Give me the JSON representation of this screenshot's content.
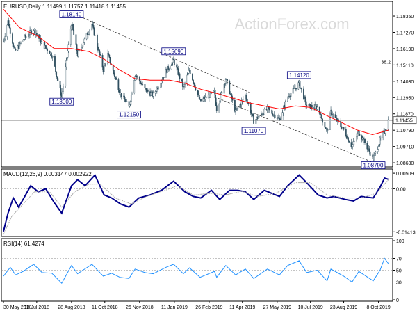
{
  "watermark": "ActionForex.com",
  "chart_data": [
    {
      "type": "candlestick",
      "panel": "price",
      "header": {
        "symbol": "EURUSD,Daily",
        "open": "1.11499",
        "high": "1.11757",
        "low": "1.11418",
        "close": "1.11455"
      },
      "ylim": [
        1.0845,
        1.1895
      ],
      "yticks": [
        "1.18350",
        "1.17270",
        "1.16190",
        "1.15110",
        "1.14030",
        "1.12950",
        "1.11870",
        "1.10790",
        "1.09710",
        "1.08630"
      ],
      "current_price": "1.11455",
      "fib_level": {
        "label": "38.2",
        "value": 1.1511
      },
      "horizontal_lines": [
        1.1511,
        1.1145
      ],
      "downtrend_channel": [
        {
          "from": [
            "2018-08-27",
            1.186
          ],
          "to": [
            "2019-04-20",
            1.133
          ]
        },
        {
          "from": [
            "2019-03-10",
            1.129
          ],
          "to": [
            "2019-10-01",
            1.0865
          ]
        }
      ],
      "annotations": [
        {
          "label": "1.18140",
          "date": "2018-08-28",
          "value": 1.1814
        },
        {
          "label": "1.13000",
          "date": "2018-08-15",
          "value": 1.13
        },
        {
          "label": "1.15690",
          "date": "2019-01-10",
          "value": 1.1569
        },
        {
          "label": "1.12150",
          "date": "2018-11-12",
          "value": 1.1215
        },
        {
          "label": "1.14120",
          "date": "2019-06-25",
          "value": 1.1412
        },
        {
          "label": "1.11070",
          "date": "2019-04-26",
          "value": 1.1107
        },
        {
          "label": "1.08790",
          "date": "2019-10-01",
          "value": 1.0879
        }
      ],
      "moving_average_keys": [
        [
          "2018-05-30",
          1.188
        ],
        [
          "2018-06-20",
          1.176
        ],
        [
          "2018-07-15",
          1.17
        ],
        [
          "2018-08-05",
          1.162
        ],
        [
          "2018-08-28",
          1.162
        ],
        [
          "2018-09-20",
          1.16
        ],
        [
          "2018-10-10",
          1.155
        ],
        [
          "2018-10-30",
          1.148
        ],
        [
          "2018-11-20",
          1.142
        ],
        [
          "2018-12-10",
          1.141
        ],
        [
          "2019-01-05",
          1.141
        ],
        [
          "2019-01-25",
          1.139
        ],
        [
          "2019-02-15",
          1.135
        ],
        [
          "2019-03-10",
          1.132
        ],
        [
          "2019-03-30",
          1.129
        ],
        [
          "2019-04-20",
          1.126
        ],
        [
          "2019-05-10",
          1.124
        ],
        [
          "2019-05-30",
          1.122
        ],
        [
          "2019-06-20",
          1.124
        ],
        [
          "2019-07-10",
          1.123
        ],
        [
          "2019-07-30",
          1.118
        ],
        [
          "2019-08-20",
          1.113
        ],
        [
          "2019-09-10",
          1.108
        ],
        [
          "2019-09-30",
          1.105
        ],
        [
          "2019-10-15",
          1.107
        ],
        [
          "2019-10-21",
          1.108
        ]
      ],
      "close_keys": [
        [
          "2018-05-30",
          1.167
        ],
        [
          "2018-06-05",
          1.18
        ],
        [
          "2018-06-14",
          1.16
        ],
        [
          "2018-06-25",
          1.168
        ],
        [
          "2018-07-09",
          1.175
        ],
        [
          "2018-07-20",
          1.165
        ],
        [
          "2018-08-02",
          1.158
        ],
        [
          "2018-08-15",
          1.13
        ],
        [
          "2018-08-28",
          1.179
        ],
        [
          "2018-09-05",
          1.158
        ],
        [
          "2018-09-24",
          1.178
        ],
        [
          "2018-10-09",
          1.148
        ],
        [
          "2018-10-15",
          1.158
        ],
        [
          "2018-10-31",
          1.133
        ],
        [
          "2018-11-12",
          1.123
        ],
        [
          "2018-11-20",
          1.145
        ],
        [
          "2018-12-03",
          1.135
        ],
        [
          "2018-12-14",
          1.131
        ],
        [
          "2018-12-31",
          1.147
        ],
        [
          "2019-01-10",
          1.154
        ],
        [
          "2019-01-23",
          1.136
        ],
        [
          "2019-01-31",
          1.148
        ],
        [
          "2019-02-14",
          1.127
        ],
        [
          "2019-03-05",
          1.133
        ],
        [
          "2019-03-08",
          1.122
        ],
        [
          "2019-03-20",
          1.142
        ],
        [
          "2019-04-02",
          1.12
        ],
        [
          "2019-04-15",
          1.131
        ],
        [
          "2019-04-26",
          1.114
        ],
        [
          "2019-05-14",
          1.122
        ],
        [
          "2019-05-30",
          1.115
        ],
        [
          "2019-06-10",
          1.13
        ],
        [
          "2019-06-25",
          1.139
        ],
        [
          "2019-07-05",
          1.124
        ],
        [
          "2019-07-19",
          1.123
        ],
        [
          "2019-08-01",
          1.107
        ],
        [
          "2019-08-06",
          1.12
        ],
        [
          "2019-08-23",
          1.108
        ],
        [
          "2019-09-03",
          1.097
        ],
        [
          "2019-09-12",
          1.107
        ],
        [
          "2019-10-01",
          1.089
        ],
        [
          "2019-10-10",
          1.101
        ],
        [
          "2019-10-16",
          1.107
        ],
        [
          "2019-10-21",
          1.1145
        ]
      ]
    },
    {
      "type": "line",
      "panel": "macd",
      "header": "MACD(12,26,9) 0.003147 0.002922",
      "ylim": [
        -0.0152,
        0.0058
      ],
      "yticks": [
        "0.00509",
        "0.00",
        "-0.01413"
      ],
      "series": [
        {
          "name": "MACD",
          "role": "macd",
          "keys": [
            [
              "2018-05-30",
              -0.014
            ],
            [
              "2018-06-05",
              -0.008
            ],
            [
              "2018-06-12",
              -0.003
            ],
            [
              "2018-06-19",
              -0.006
            ],
            [
              "2018-06-26",
              -0.003
            ],
            [
              "2018-07-05",
              0.001
            ],
            [
              "2018-07-15",
              -0.001
            ],
            [
              "2018-07-25",
              0.0
            ],
            [
              "2018-08-05",
              -0.0045
            ],
            [
              "2018-08-15",
              -0.008
            ],
            [
              "2018-08-28",
              0.001
            ],
            [
              "2018-09-05",
              0.003
            ],
            [
              "2018-09-15",
              0.001
            ],
            [
              "2018-09-28",
              0.0045
            ],
            [
              "2018-10-10",
              -0.002
            ],
            [
              "2018-10-20",
              -0.003
            ],
            [
              "2018-11-01",
              -0.005
            ],
            [
              "2018-11-12",
              -0.006
            ],
            [
              "2018-11-25",
              -0.003
            ],
            [
              "2018-12-10",
              -0.002
            ],
            [
              "2018-12-25",
              -0.0005
            ],
            [
              "2019-01-10",
              0.0025
            ],
            [
              "2019-01-25",
              -0.001
            ],
            [
              "2019-02-05",
              -0.0025
            ],
            [
              "2019-02-15",
              -0.003
            ],
            [
              "2019-03-01",
              -0.0005
            ],
            [
              "2019-03-12",
              -0.0035
            ],
            [
              "2019-03-25",
              -0.0005
            ],
            [
              "2019-04-05",
              -0.0005
            ],
            [
              "2019-04-15",
              -0.001
            ],
            [
              "2019-04-26",
              -0.0035
            ],
            [
              "2019-05-10",
              -0.0005
            ],
            [
              "2019-05-30",
              -0.0025
            ],
            [
              "2019-06-10",
              0.001
            ],
            [
              "2019-06-25",
              0.0045
            ],
            [
              "2019-07-05",
              0.002
            ],
            [
              "2019-07-20",
              -0.002
            ],
            [
              "2019-08-01",
              -0.003
            ],
            [
              "2019-08-10",
              -0.0025
            ],
            [
              "2019-08-25",
              -0.0035
            ],
            [
              "2019-09-05",
              -0.004
            ],
            [
              "2019-09-15",
              -0.0025
            ],
            [
              "2019-10-01",
              -0.003
            ],
            [
              "2019-10-10",
              0.0005
            ],
            [
              "2019-10-16",
              0.0035
            ],
            [
              "2019-10-21",
              0.0031
            ]
          ]
        },
        {
          "name": "Signal",
          "role": "signal",
          "keys": [
            [
              "2018-05-30",
              -0.015
            ],
            [
              "2018-06-10",
              -0.009
            ],
            [
              "2018-06-25",
              -0.005
            ],
            [
              "2018-07-10",
              -0.001
            ],
            [
              "2018-07-30",
              -0.001
            ],
            [
              "2018-08-15",
              -0.006
            ],
            [
              "2018-09-01",
              -0.001
            ],
            [
              "2018-09-20",
              0.0015
            ],
            [
              "2018-10-05",
              0.0015
            ],
            [
              "2018-10-25",
              -0.003
            ],
            [
              "2018-11-15",
              -0.005
            ],
            [
              "2018-12-05",
              -0.0025
            ],
            [
              "2018-12-30",
              -0.0005
            ],
            [
              "2019-01-15",
              0.001
            ],
            [
              "2019-02-05",
              -0.002
            ],
            [
              "2019-03-01",
              -0.0015
            ],
            [
              "2019-03-20",
              -0.002
            ],
            [
              "2019-04-10",
              -0.0008
            ],
            [
              "2019-05-01",
              -0.0025
            ],
            [
              "2019-05-25",
              -0.0015
            ],
            [
              "2019-06-20",
              0.002
            ],
            [
              "2019-07-10",
              0.002
            ],
            [
              "2019-08-01",
              -0.002
            ],
            [
              "2019-08-25",
              -0.003
            ],
            [
              "2019-09-15",
              -0.003
            ],
            [
              "2019-10-05",
              -0.0015
            ],
            [
              "2019-10-21",
              0.0029
            ]
          ]
        }
      ]
    },
    {
      "type": "line",
      "panel": "rsi",
      "header": "RSI(14) 61.4274",
      "ylim": [
        0,
        100
      ],
      "yticks": [
        "100",
        "70",
        "50",
        "30",
        "0"
      ],
      "levels": [
        70,
        50,
        30
      ],
      "series": [
        {
          "name": "RSI",
          "keys": [
            [
              "2018-05-30",
              40
            ],
            [
              "2018-06-08",
              55
            ],
            [
              "2018-06-15",
              42
            ],
            [
              "2018-06-25",
              48
            ],
            [
              "2018-07-09",
              60
            ],
            [
              "2018-07-20",
              46
            ],
            [
              "2018-08-02",
              45
            ],
            [
              "2018-08-15",
              28
            ],
            [
              "2018-08-28",
              58
            ],
            [
              "2018-09-05",
              44
            ],
            [
              "2018-09-24",
              60
            ],
            [
              "2018-10-09",
              40
            ],
            [
              "2018-10-20",
              45
            ],
            [
              "2018-10-31",
              38
            ],
            [
              "2018-11-12",
              36
            ],
            [
              "2018-11-20",
              52
            ],
            [
              "2018-12-03",
              46
            ],
            [
              "2018-12-14",
              44
            ],
            [
              "2018-12-31",
              55
            ],
            [
              "2019-01-10",
              60
            ],
            [
              "2019-01-23",
              44
            ],
            [
              "2019-01-31",
              54
            ],
            [
              "2019-02-14",
              38
            ],
            [
              "2019-03-05",
              48
            ],
            [
              "2019-03-08",
              38
            ],
            [
              "2019-03-20",
              58
            ],
            [
              "2019-04-02",
              42
            ],
            [
              "2019-04-15",
              52
            ],
            [
              "2019-04-26",
              36
            ],
            [
              "2019-05-14",
              52
            ],
            [
              "2019-05-30",
              42
            ],
            [
              "2019-06-10",
              58
            ],
            [
              "2019-06-25",
              66
            ],
            [
              "2019-07-05",
              46
            ],
            [
              "2019-07-19",
              50
            ],
            [
              "2019-08-01",
              32
            ],
            [
              "2019-08-06",
              52
            ],
            [
              "2019-08-23",
              40
            ],
            [
              "2019-09-03",
              30
            ],
            [
              "2019-09-12",
              48
            ],
            [
              "2019-10-01",
              32
            ],
            [
              "2019-10-10",
              50
            ],
            [
              "2019-10-16",
              70
            ],
            [
              "2019-10-21",
              61.4
            ]
          ]
        }
      ]
    }
  ],
  "x_axis": {
    "range": [
      "2018-05-30",
      "2019-10-24"
    ],
    "ticks": [
      {
        "label": "30 May 2018",
        "date": "2018-05-30"
      },
      {
        "label": "13 Jul 2018",
        "date": "2018-07-13"
      },
      {
        "label": "28 Aug 2018",
        "date": "2018-08-28"
      },
      {
        "label": "11 Oct 2018",
        "date": "2018-10-11"
      },
      {
        "label": "26 Nov 2018",
        "date": "2018-11-26"
      },
      {
        "label": "11 Jan 2019",
        "date": "2019-01-11"
      },
      {
        "label": "26 Feb 2019",
        "date": "2019-02-26"
      },
      {
        "label": "11 Apr 2019",
        "date": "2019-04-11"
      },
      {
        "label": "27 May 2019",
        "date": "2019-05-27"
      },
      {
        "label": "10 Jul 2019",
        "date": "2019-07-10"
      },
      {
        "label": "23 Aug 2019",
        "date": "2019-08-23"
      },
      {
        "label": "8 Oct 2019",
        "date": "2019-10-08"
      }
    ]
  },
  "colors": {
    "candle": "#2f4f5f",
    "moving_average": "#ff0000",
    "macd_line": "#00008b",
    "signal_line": "#aaaaaa",
    "rsi_line": "#1e90ff",
    "trendline": "#333333",
    "annotation_border": "#000080",
    "annotation_text": "#000080",
    "price_tag_bg": "#ffffff",
    "grid": "#000000"
  }
}
